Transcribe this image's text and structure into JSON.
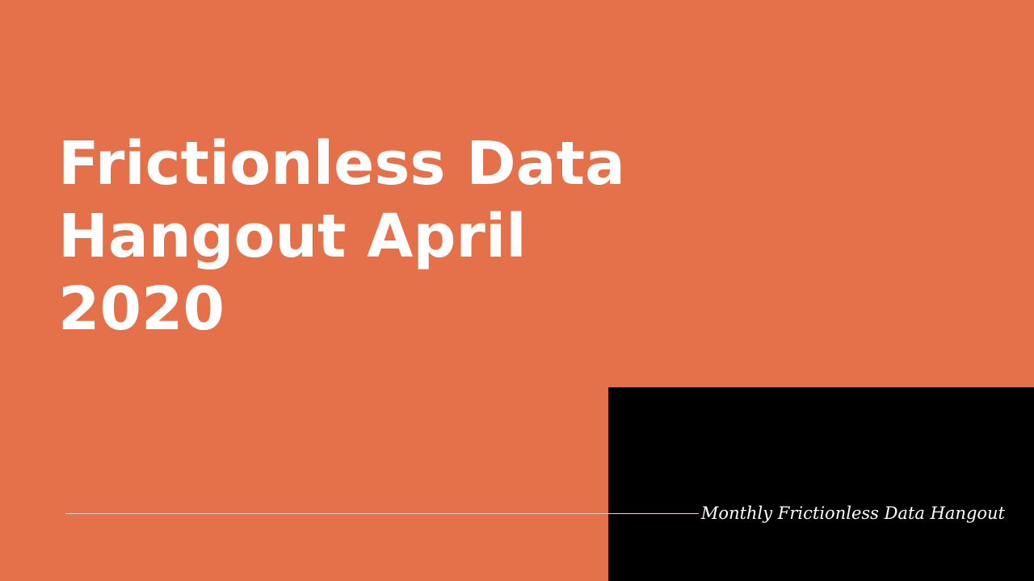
{
  "slide": {
    "title_lines": [
      "Frictionless Data",
      "Hangout April",
      "2020"
    ],
    "subtitle": "Monthly Frictionless Data Hangout"
  },
  "colors": {
    "background": "#e4714a",
    "block": "#000000",
    "text": "#ffffff",
    "divider": "#f3d3c6"
  }
}
